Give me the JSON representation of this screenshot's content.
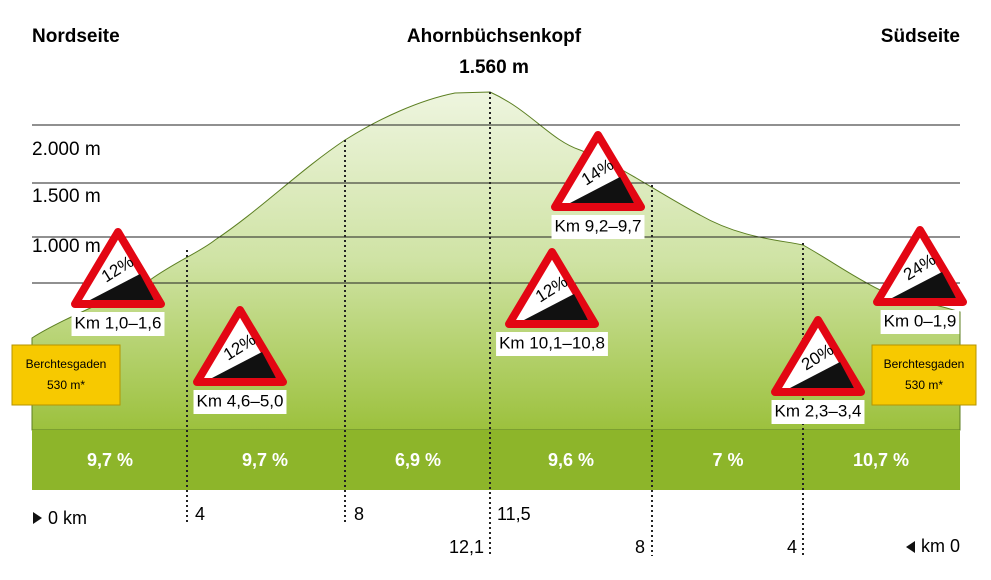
{
  "header": {
    "left": "Nordseite",
    "summit": "Ahornbüchsenkopf",
    "summit_height": "1.560 m",
    "right": "Südseite"
  },
  "elevation_lines": [
    "2.000 m",
    "1.500 m",
    "1.000 m"
  ],
  "signs": [
    {
      "grade": "12%",
      "label": "Km 1,0–1,6"
    },
    {
      "grade": "12%",
      "label": "Km 4,6–5,0"
    },
    {
      "grade": "14%",
      "label": "Km 9,2–9,7"
    },
    {
      "grade": "12%",
      "label": "Km 10,1–10,8"
    },
    {
      "grade": "20%",
      "label": "Km 2,3–3,4"
    },
    {
      "grade": "24%",
      "label": "Km 0–1,9"
    }
  ],
  "endpoints": [
    {
      "name": "Berchtesgaden",
      "height": "530 m*"
    },
    {
      "name": "Berchtesgaden",
      "height": "530 m*"
    }
  ],
  "segments": [
    "9,7 %",
    "9,7 %",
    "6,9 %",
    "9,6 %",
    "7 %",
    "10,7 %"
  ],
  "north_km": {
    "start": "0 km",
    "marks": [
      "4",
      "8",
      "11,5"
    ]
  },
  "south_km": {
    "marks": [
      "12,1",
      "8",
      "4"
    ],
    "end": "km 0"
  }
}
